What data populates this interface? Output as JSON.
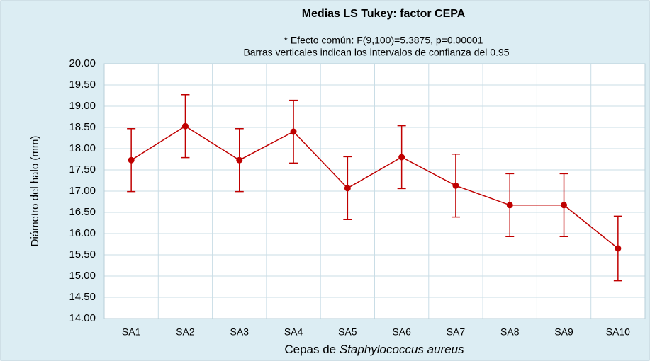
{
  "chart_data": {
    "type": "line",
    "title": "Medias LS Tukey: factor CEPA",
    "subtitle": [
      "* Efecto común: F(9,100)=5.3875, p=0.00001",
      "Barras  verticales indican los intervalos de confianza del 0.95"
    ],
    "ylabel": "Diámetro del halo (mm)",
    "xlabel": [
      "Cepas de ",
      "Staphylococcus aureus"
    ],
    "categories": [
      "SA1",
      "SA2",
      "SA3",
      "SA4",
      "SA5",
      "SA6",
      "SA7",
      "SA8",
      "SA9",
      "SA10"
    ],
    "values": [
      17.73,
      18.53,
      17.73,
      18.4,
      17.07,
      17.8,
      17.13,
      16.67,
      16.67,
      15.65
    ],
    "errors": [
      0.74,
      0.74,
      0.74,
      0.74,
      0.74,
      0.74,
      0.74,
      0.74,
      0.74,
      0.76
    ],
    "color": "#c00000",
    "ylim": [
      14,
      20
    ],
    "yticks": [
      {
        "value": 14,
        "label": "14.00"
      },
      {
        "value": 14.5,
        "label": "14.50"
      },
      {
        "value": 15,
        "label": "15.00"
      },
      {
        "value": 15.5,
        "label": "15.50"
      },
      {
        "value": 16,
        "label": "16.00"
      },
      {
        "value": 16.5,
        "label": "16.50"
      },
      {
        "value": 17,
        "label": "17.00"
      },
      {
        "value": 17.5,
        "label": "17.50"
      },
      {
        "value": 18,
        "label": "18.00"
      },
      {
        "value": 18.5,
        "label": "18.50"
      },
      {
        "value": 19,
        "label": "19.00"
      },
      {
        "value": 19.5,
        "label": "19.50"
      },
      {
        "value": 20,
        "label": "20.00"
      }
    ],
    "grid": true
  }
}
